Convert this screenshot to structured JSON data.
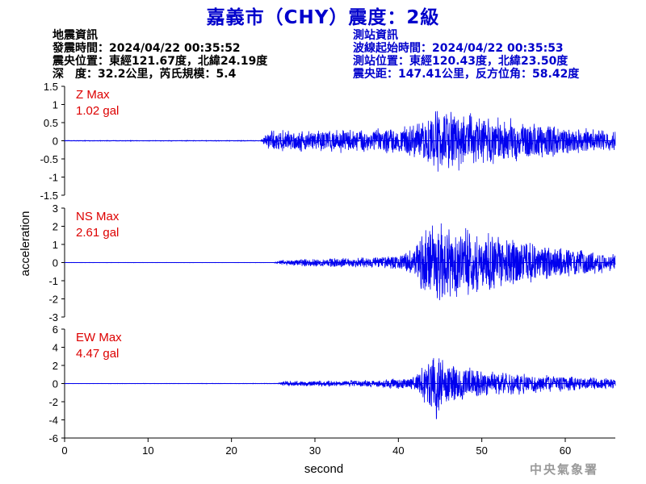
{
  "title": "嘉義市（CHY）震度：2級",
  "event_info": {
    "heading": "地震資訊",
    "origin_time": "發震時間：2024/04/22 00:35:52",
    "epicenter": "震央位置：東經121.67度，北緯24.19度",
    "depth_magnitude": "深　度：32.2公里，芮氏規模：5.4"
  },
  "station_info": {
    "heading": "測站資訊",
    "wave_onset": "波線起始時間：2024/04/22 00:35:53",
    "location": "測站位置：東經120.43度，北緯23.50度",
    "distance": "震央距：147.41公里，反方位角：58.42度"
  },
  "watermark": "中央氣象署",
  "colors": {
    "trace": "#0000ee",
    "annotation": "#dd0000",
    "title": "#0000cc"
  },
  "chart_data": {
    "type": "line",
    "xlabel": "second",
    "ylabel": "acceleration",
    "xlim": [
      0,
      66
    ],
    "x_ticks": [
      "0",
      "10",
      "20",
      "30",
      "40",
      "50",
      "60"
    ],
    "panels": [
      {
        "name": "Z",
        "max_label": "Z Max",
        "max_value": "1.02 gal",
        "ylim": [
          -1.5,
          1.5
        ],
        "y_ticks": [
          "1.5",
          "1",
          "0.5",
          "0",
          "-0.5",
          "-1",
          "-1.5"
        ],
        "envelope": [
          {
            "t": 0,
            "amp": 0.01
          },
          {
            "t": 23.5,
            "amp": 0.01
          },
          {
            "t": 24.5,
            "amp": 0.3
          },
          {
            "t": 30,
            "amp": 0.33
          },
          {
            "t": 35,
            "amp": 0.35
          },
          {
            "t": 40,
            "amp": 0.38
          },
          {
            "t": 43,
            "amp": 0.55
          },
          {
            "t": 44.5,
            "amp": 0.95
          },
          {
            "t": 46.5,
            "amp": 0.9
          },
          {
            "t": 50,
            "amp": 0.75
          },
          {
            "t": 55,
            "amp": 0.6
          },
          {
            "t": 60,
            "amp": 0.4
          },
          {
            "t": 66,
            "amp": 0.3
          }
        ]
      },
      {
        "name": "NS",
        "max_label": "NS Max",
        "max_value": "2.61 gal",
        "ylim": [
          -3,
          3
        ],
        "y_ticks": [
          "3",
          "2",
          "1",
          "0",
          "-1",
          "-2",
          "-3"
        ],
        "envelope": [
          {
            "t": 0,
            "amp": 0.01
          },
          {
            "t": 25,
            "amp": 0.01
          },
          {
            "t": 26,
            "amp": 0.15
          },
          {
            "t": 30,
            "amp": 0.25
          },
          {
            "t": 35,
            "amp": 0.3
          },
          {
            "t": 40,
            "amp": 0.4
          },
          {
            "t": 42,
            "amp": 0.9
          },
          {
            "t": 43.5,
            "amp": 2.5
          },
          {
            "t": 46,
            "amp": 2.2
          },
          {
            "t": 50,
            "amp": 1.8
          },
          {
            "t": 55,
            "amp": 1.3
          },
          {
            "t": 60,
            "amp": 0.9
          },
          {
            "t": 66,
            "amp": 0.5
          }
        ]
      },
      {
        "name": "EW",
        "max_label": "EW Max",
        "max_value": "4.47 gal",
        "ylim": [
          -6,
          6
        ],
        "y_ticks": [
          "6",
          "4",
          "2",
          "0",
          "-2",
          "-4",
          "-6"
        ],
        "envelope": [
          {
            "t": 0,
            "amp": 0.02
          },
          {
            "t": 25.5,
            "amp": 0.03
          },
          {
            "t": 26.5,
            "amp": 0.3
          },
          {
            "t": 32,
            "amp": 0.35
          },
          {
            "t": 38,
            "amp": 0.45
          },
          {
            "t": 42,
            "amp": 0.8
          },
          {
            "t": 43.5,
            "amp": 3.0
          },
          {
            "t": 44.5,
            "amp": 4.4
          },
          {
            "t": 46,
            "amp": 2.5
          },
          {
            "t": 50,
            "amp": 1.6
          },
          {
            "t": 55,
            "amp": 1.2
          },
          {
            "t": 60,
            "amp": 0.9
          },
          {
            "t": 66,
            "amp": 0.6
          }
        ]
      }
    ]
  }
}
